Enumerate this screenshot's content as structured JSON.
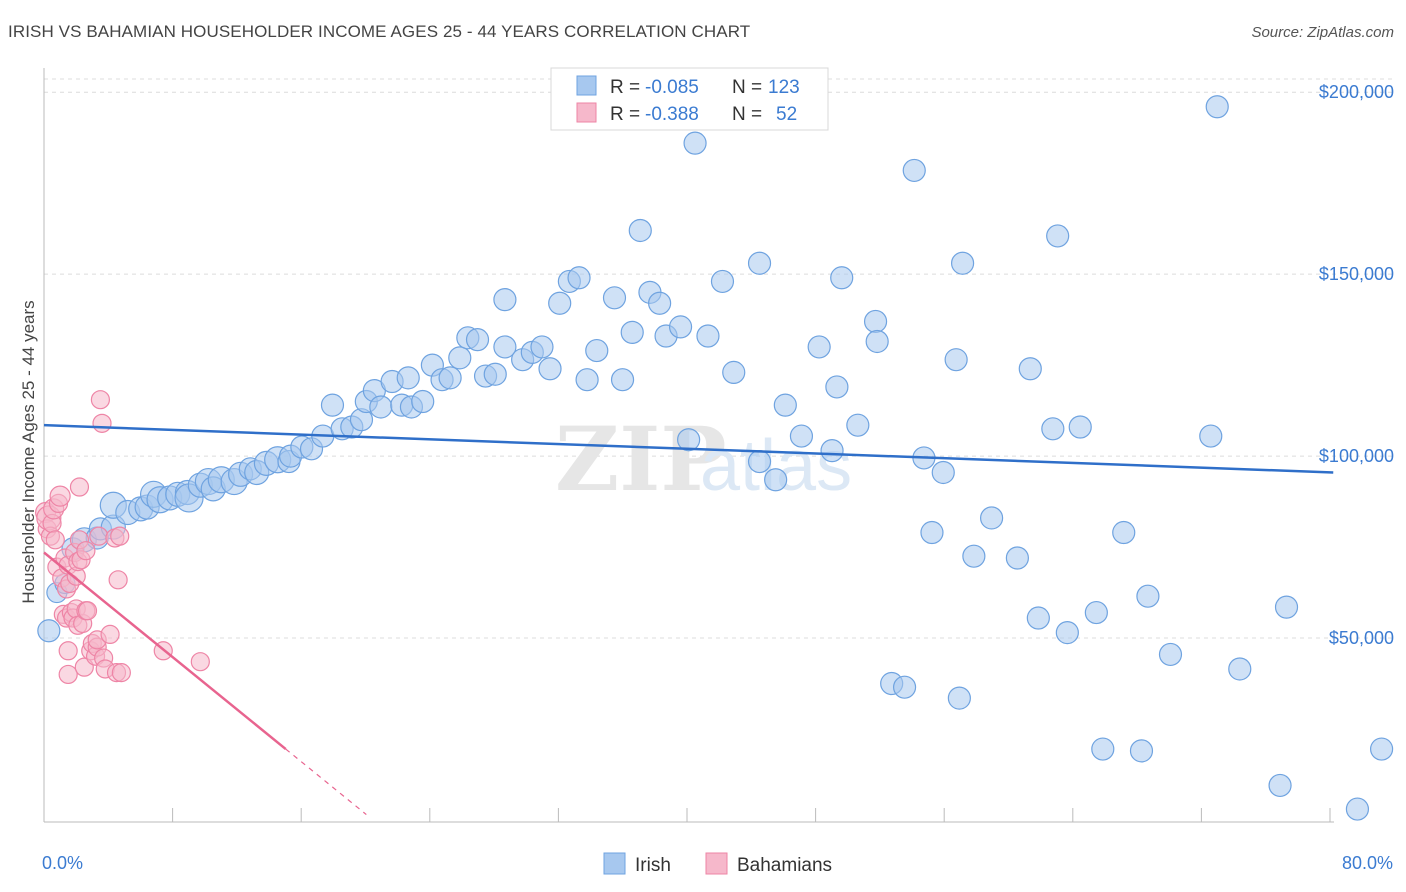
{
  "title": "IRISH VS BAHAMIAN HOUSEHOLDER INCOME AGES 25 - 44 YEARS CORRELATION CHART",
  "source": "Source: ZipAtlas.com",
  "watermark": {
    "zip": "ZIP",
    "atlas": "atlas"
  },
  "legend_box": {
    "rows": [
      {
        "r_label": "R =",
        "r_value": "-0.085",
        "n_label": "N =",
        "n_value": "123",
        "color": "#a7c8ef"
      },
      {
        "r_label": "R =",
        "r_value": "-0.388",
        "n_label": "N =",
        "n_value": "52",
        "color": "#f6b8cb"
      }
    ]
  },
  "bottom_legend": [
    {
      "label": "Irish",
      "color": "#a7c8ef"
    },
    {
      "label": "Bahamians",
      "color": "#f6b8cb"
    }
  ],
  "chart_data": {
    "type": "scatter",
    "xlabel": "",
    "ylabel": "Householder Income Ages 25 - 44 years",
    "xlim": [
      0,
      80
    ],
    "ylim": [
      0,
      205000
    ],
    "x_tick_labels": [
      "0.0%",
      "80.0%"
    ],
    "y_ticks": [
      50000,
      100000,
      150000,
      200000
    ],
    "y_tick_labels": [
      "$50,000",
      "$100,000",
      "$150,000",
      "$200,000"
    ],
    "grid": true,
    "series": [
      {
        "name": "Irish",
        "color": "#6fa3e0",
        "fill": "#a7c8ef",
        "trend": {
          "x": [
            0,
            80
          ],
          "y": [
            108500,
            95500
          ],
          "color": "#2f6fc9"
        },
        "points": [
          [
            0.3,
            52000,
            11
          ],
          [
            0.8,
            62500,
            10
          ],
          [
            1.3,
            65000,
            10
          ],
          [
            1.8,
            74500,
            11
          ],
          [
            2.5,
            77000,
            12
          ],
          [
            3.3,
            77500,
            11
          ],
          [
            3.5,
            80000,
            11
          ],
          [
            4.3,
            80500,
            12
          ],
          [
            4.3,
            86500,
            13
          ],
          [
            5.2,
            84500,
            12
          ],
          [
            6.0,
            85500,
            12
          ],
          [
            6.4,
            86000,
            12
          ],
          [
            6.8,
            89500,
            13
          ],
          [
            7.2,
            88000,
            13
          ],
          [
            7.8,
            88500,
            12
          ],
          [
            8.3,
            89500,
            12
          ],
          [
            8.9,
            90000,
            12
          ],
          [
            9.0,
            88500,
            14
          ],
          [
            9.7,
            92000,
            12
          ],
          [
            10.2,
            93000,
            13
          ],
          [
            10.5,
            91000,
            12
          ],
          [
            11.0,
            93500,
            13
          ],
          [
            11.8,
            93000,
            13
          ],
          [
            12.2,
            95000,
            12
          ],
          [
            12.8,
            96500,
            11
          ],
          [
            13.2,
            95500,
            12
          ],
          [
            13.8,
            98000,
            12
          ],
          [
            14.5,
            99000,
            13
          ],
          [
            15.2,
            98500,
            11
          ],
          [
            15.3,
            100000,
            11
          ],
          [
            16.0,
            102500,
            11
          ],
          [
            16.6,
            102000,
            11
          ],
          [
            17.3,
            105500,
            11
          ],
          [
            17.9,
            114000,
            11
          ],
          [
            18.5,
            107500,
            11
          ],
          [
            19.1,
            108000,
            11
          ],
          [
            19.7,
            110000,
            11
          ],
          [
            20.0,
            115000,
            11
          ],
          [
            20.5,
            118000,
            11
          ],
          [
            20.9,
            113500,
            11
          ],
          [
            21.6,
            120500,
            11
          ],
          [
            22.2,
            114000,
            11
          ],
          [
            22.8,
            113500,
            11
          ],
          [
            23.5,
            115000,
            11
          ],
          [
            22.6,
            121500,
            11
          ],
          [
            24.1,
            125000,
            11
          ],
          [
            24.7,
            121000,
            11
          ],
          [
            25.2,
            121500,
            11
          ],
          [
            25.8,
            127000,
            11
          ],
          [
            26.3,
            132500,
            11
          ],
          [
            26.9,
            132000,
            11
          ],
          [
            27.4,
            122000,
            11
          ],
          [
            28.0,
            122500,
            11
          ],
          [
            28.6,
            130000,
            11
          ],
          [
            28.6,
            143000,
            11
          ],
          [
            29.7,
            126500,
            11
          ],
          [
            30.3,
            128500,
            11
          ],
          [
            30.9,
            130000,
            11
          ],
          [
            31.4,
            124000,
            11
          ],
          [
            32.0,
            142000,
            11
          ],
          [
            32.6,
            148000,
            11
          ],
          [
            33.2,
            149000,
            11
          ],
          [
            33.7,
            121000,
            11
          ],
          [
            34.3,
            129000,
            11
          ],
          [
            35.4,
            143500,
            11
          ],
          [
            35.9,
            121000,
            11
          ],
          [
            36.5,
            134000,
            11
          ],
          [
            37.6,
            145000,
            11
          ],
          [
            38.2,
            142000,
            11
          ],
          [
            38.6,
            133000,
            11
          ],
          [
            37.0,
            162000,
            11
          ],
          [
            39.5,
            135500,
            11
          ],
          [
            40.0,
            104500,
            11
          ],
          [
            40.4,
            186000,
            11
          ],
          [
            41.2,
            133000,
            11
          ],
          [
            42.1,
            148000,
            11
          ],
          [
            42.8,
            123000,
            11
          ],
          [
            44.4,
            153000,
            11
          ],
          [
            44.4,
            98500,
            11
          ],
          [
            45.4,
            93500,
            11
          ],
          [
            46.0,
            114000,
            11
          ],
          [
            47.0,
            105500,
            11
          ],
          [
            46.7,
            193000,
            11
          ],
          [
            48.1,
            130000,
            11
          ],
          [
            48.9,
            101500,
            11
          ],
          [
            49.2,
            119000,
            11
          ],
          [
            49.5,
            149000,
            11
          ],
          [
            50.5,
            108500,
            11
          ],
          [
            51.6,
            137000,
            11
          ],
          [
            51.7,
            131500,
            11
          ],
          [
            52.6,
            37500,
            11
          ],
          [
            53.4,
            36500,
            11
          ],
          [
            54.0,
            178500,
            11
          ],
          [
            54.6,
            99500,
            11
          ],
          [
            55.1,
            79000,
            11
          ],
          [
            55.8,
            95500,
            11
          ],
          [
            56.6,
            126500,
            11
          ],
          [
            57.0,
            153000,
            11
          ],
          [
            56.8,
            33500,
            11
          ],
          [
            57.7,
            72500,
            11
          ],
          [
            58.8,
            83000,
            11
          ],
          [
            60.4,
            72000,
            11
          ],
          [
            61.2,
            124000,
            11
          ],
          [
            61.7,
            55500,
            11
          ],
          [
            62.6,
            107500,
            11
          ],
          [
            62.9,
            160500,
            11
          ],
          [
            63.5,
            51500,
            11
          ],
          [
            64.3,
            108000,
            11
          ],
          [
            65.3,
            57000,
            11
          ],
          [
            65.7,
            19500,
            11
          ],
          [
            67.0,
            79000,
            11
          ],
          [
            68.1,
            19000,
            11
          ],
          [
            68.5,
            61500,
            11
          ],
          [
            69.9,
            45500,
            11
          ],
          [
            72.4,
            105500,
            11
          ],
          [
            72.8,
            196000,
            11
          ],
          [
            74.2,
            41500,
            11
          ],
          [
            77.1,
            58500,
            11
          ],
          [
            76.7,
            9500,
            11
          ],
          [
            81.5,
            3000,
            11
          ],
          [
            83.0,
            19500,
            11
          ]
        ]
      },
      {
        "name": "Bahamians",
        "color": "#ee85a6",
        "fill": "#f6b8cb",
        "trend": {
          "x": [
            0,
            15
          ],
          "y": [
            73500,
            19500
          ],
          "dash_to": [
            20,
            1500
          ],
          "color": "#e8648f"
        },
        "points": [
          [
            0.1,
            84500,
            10
          ],
          [
            0.2,
            80000,
            9
          ],
          [
            0.3,
            83000,
            12
          ],
          [
            0.4,
            78000,
            9
          ],
          [
            0.5,
            81500,
            9
          ],
          [
            0.6,
            85500,
            10
          ],
          [
            0.7,
            77000,
            9
          ],
          [
            0.8,
            69500,
            9
          ],
          [
            0.9,
            87000,
            9
          ],
          [
            1.0,
            89000,
            10
          ],
          [
            1.1,
            66500,
            9
          ],
          [
            1.2,
            56500,
            9
          ],
          [
            1.3,
            72000,
            9
          ],
          [
            1.4,
            63500,
            9
          ],
          [
            1.4,
            55500,
            9
          ],
          [
            1.5,
            70000,
            9
          ],
          [
            1.5,
            40000,
            9
          ],
          [
            1.5,
            46500,
            9
          ],
          [
            1.6,
            65000,
            9
          ],
          [
            1.7,
            57000,
            9
          ],
          [
            1.8,
            55500,
            9
          ],
          [
            1.9,
            73500,
            9
          ],
          [
            2.0,
            67000,
            9
          ],
          [
            2.0,
            58000,
            9
          ],
          [
            2.1,
            53500,
            9
          ],
          [
            2.1,
            71000,
            9
          ],
          [
            2.2,
            77000,
            9
          ],
          [
            2.2,
            91500,
            9
          ],
          [
            2.3,
            71500,
            9
          ],
          [
            2.4,
            54000,
            9
          ],
          [
            2.5,
            42000,
            9
          ],
          [
            2.6,
            57500,
            9
          ],
          [
            2.6,
            74000,
            9
          ],
          [
            2.7,
            57500,
            9
          ],
          [
            2.9,
            46500,
            9
          ],
          [
            3.0,
            48500,
            9
          ],
          [
            3.2,
            45000,
            9
          ],
          [
            3.3,
            47500,
            9
          ],
          [
            3.3,
            49500,
            9
          ],
          [
            3.4,
            78000,
            9
          ],
          [
            3.5,
            115500,
            9
          ],
          [
            3.6,
            109000,
            9
          ],
          [
            3.7,
            44500,
            9
          ],
          [
            3.8,
            41500,
            9
          ],
          [
            4.1,
            51000,
            9
          ],
          [
            4.4,
            77500,
            9
          ],
          [
            4.5,
            40500,
            9
          ],
          [
            4.6,
            66000,
            9
          ],
          [
            4.7,
            78000,
            9
          ],
          [
            7.4,
            46500,
            9
          ],
          [
            9.7,
            43500,
            9
          ],
          [
            4.8,
            40500,
            9
          ]
        ]
      }
    ]
  }
}
